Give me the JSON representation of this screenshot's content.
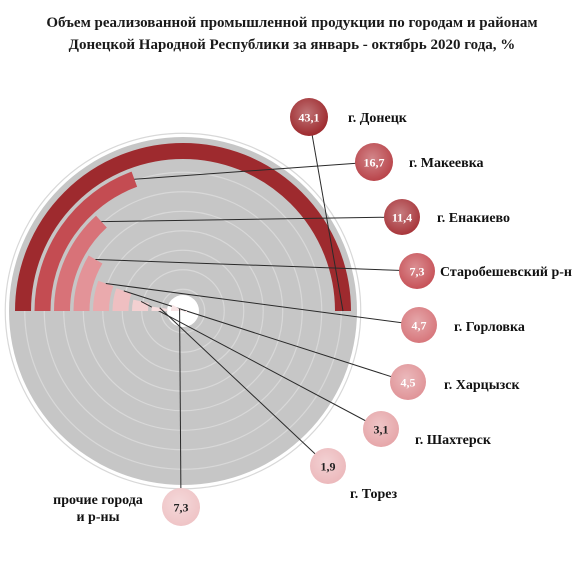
{
  "title_line1": "Объем реализованной промышленной продукции по городам и районам",
  "title_line2": "Донецкой Народной Республики за январь - октябрь 2020 года, %",
  "chart_data": {
    "type": "radial-bar",
    "title": "Объем реализованной промышленной продукции по городам и районам Донецкой Народной Республики за январь - октябрь 2020 года, %",
    "unit": "%",
    "categories": [
      "г. Донецк",
      "г. Макеевка",
      "г. Енакиево",
      "Старобешевский р-н",
      "г. Горловка",
      "г. Харцызск",
      "г. Шахтерск",
      "г. Торез",
      "прочие города и р-ны"
    ],
    "values": [
      43.1,
      16.7,
      11.4,
      7.3,
      4.7,
      4.5,
      3.1,
      1.9,
      7.3
    ],
    "value_labels": [
      "43,1",
      "16,7",
      "11,4",
      "7,3",
      "4,7",
      "4,5",
      "3,1",
      "1,9",
      "7,3"
    ],
    "label_lines": [
      [
        "г. Донецк"
      ],
      [
        "г. Макеевка"
      ],
      [
        "г. Енакиево"
      ],
      [
        "Старобешевский р-н"
      ],
      [
        "г. Горловка"
      ],
      [
        "г. Харцызск"
      ],
      [
        "г. Шахтерск"
      ],
      [
        "г. Торез"
      ],
      [
        "прочие города",
        "и р-ны"
      ]
    ],
    "colors": [
      "#9e2a2e",
      "#b9444a",
      "#a8363b",
      "#c75258",
      "#d7777c",
      "#e09498",
      "#e6a6a9",
      "#ecb9bc",
      "#efc4c6"
    ],
    "bar_colors": [
      "#9e2a2e",
      "#c44c52",
      "#d87278",
      "#e39398",
      "#eaaaad",
      "#efbfc1",
      "#f3d0d1",
      "#f6dcdd",
      "#f8e4e5"
    ],
    "track_color": "#c6c6c6",
    "ring_line_color": "#d8d8d8"
  }
}
